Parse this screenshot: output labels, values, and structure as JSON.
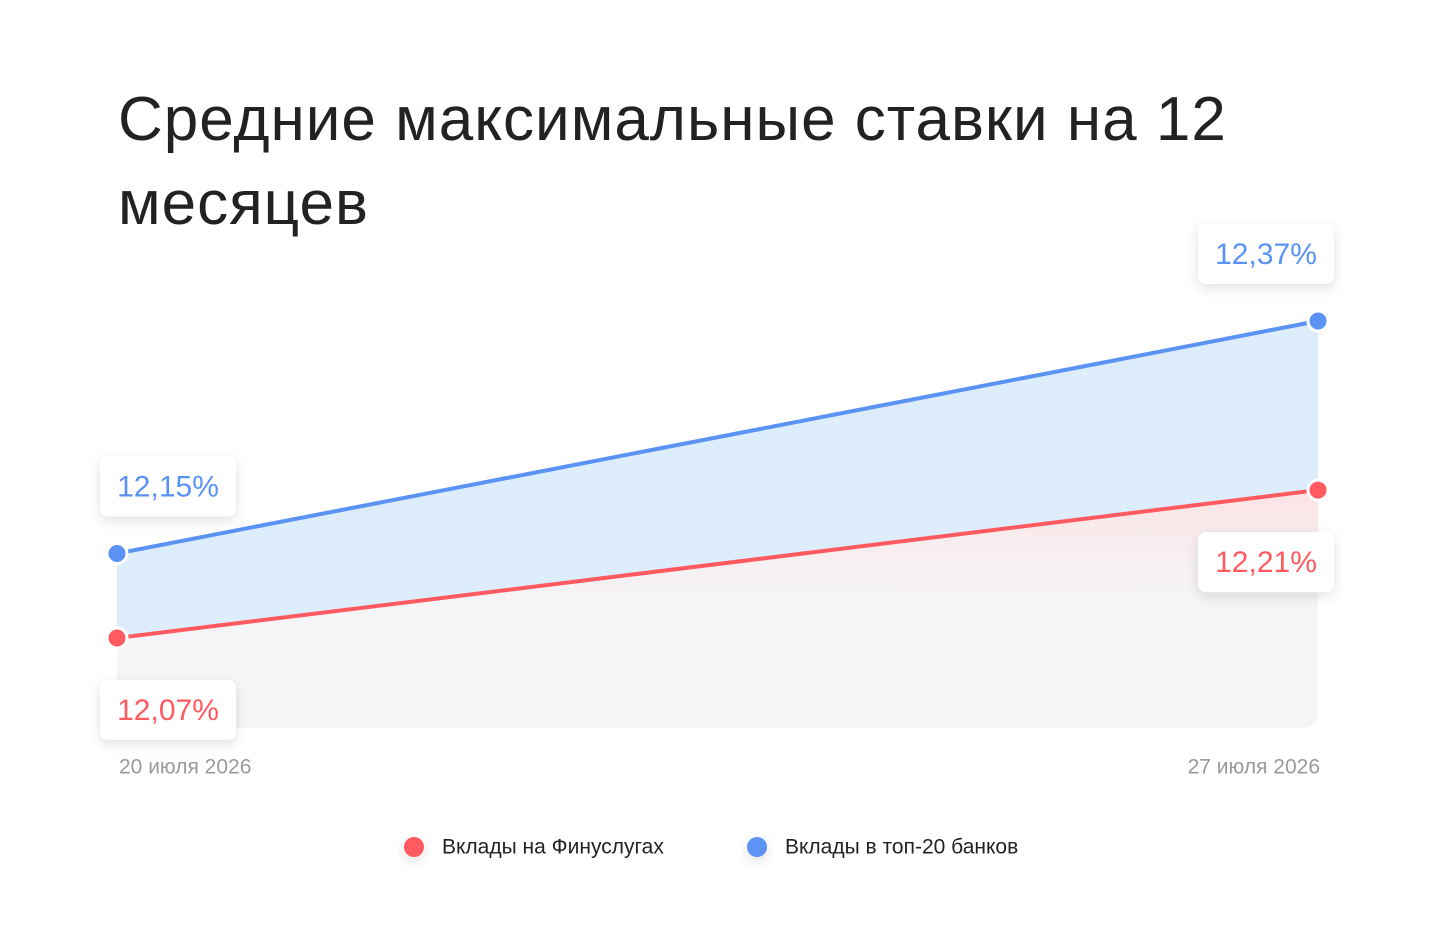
{
  "chart_data": {
    "type": "line",
    "title": "Средние максимальные ставки на 12 месяцев",
    "categories": [
      "20 июля 2026",
      "27 июля 2026"
    ],
    "series": [
      {
        "name": "Вклады на Финуслугах",
        "color": "#ff5a5f",
        "values": [
          12.07,
          12.21
        ],
        "value_labels": [
          "12,07%",
          "12,21%"
        ]
      },
      {
        "name": "Вклады в топ-20 банков",
        "color": "#5b93f5",
        "values": [
          12.15,
          12.37
        ],
        "value_labels": [
          "12,15%",
          "12,37%"
        ]
      }
    ]
  }
}
